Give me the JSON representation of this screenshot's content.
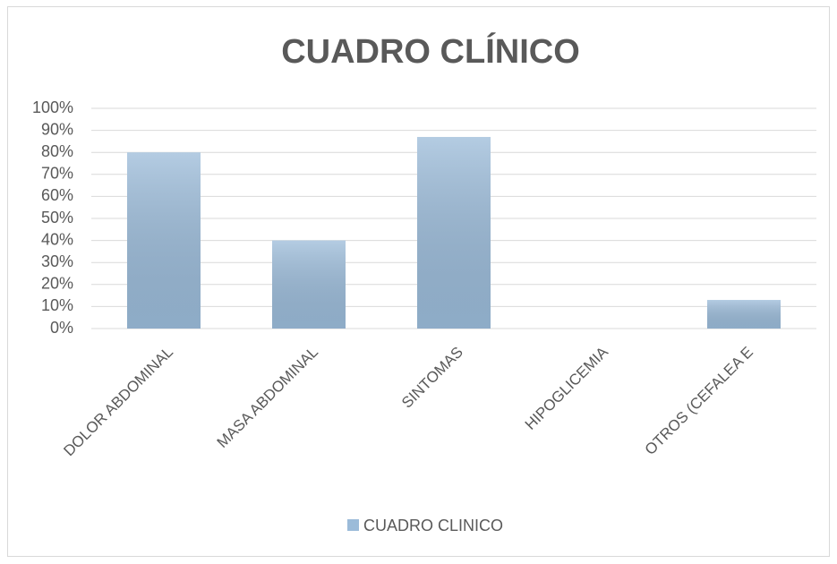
{
  "chart_data": {
    "type": "bar",
    "title": "CUADRO CLÍNICO",
    "categories": [
      "DOLOR ABDOMINAL",
      "MASA ABDOMINAL",
      "SINTOMAS",
      "HIPOGLICEMIA",
      "OTROS (CEFALEA E"
    ],
    "series": [
      {
        "name": "CUADRO CLINICO",
        "color": "#9bbbd9",
        "values": [
          80,
          40,
          87,
          0,
          13
        ]
      }
    ],
    "ylim": [
      0,
      100
    ],
    "yticks": [
      {
        "value": 0,
        "label": "0%"
      },
      {
        "value": 10,
        "label": "10%"
      },
      {
        "value": 20,
        "label": "20%"
      },
      {
        "value": 30,
        "label": "30%"
      },
      {
        "value": 40,
        "label": "40%"
      },
      {
        "value": 50,
        "label": "50%"
      },
      {
        "value": 60,
        "label": "60%"
      },
      {
        "value": 70,
        "label": "70%"
      },
      {
        "value": 80,
        "label": "80%"
      },
      {
        "value": 90,
        "label": "90%"
      },
      {
        "value": 100,
        "label": "100%"
      }
    ],
    "grid": true,
    "legend": "bottom"
  }
}
